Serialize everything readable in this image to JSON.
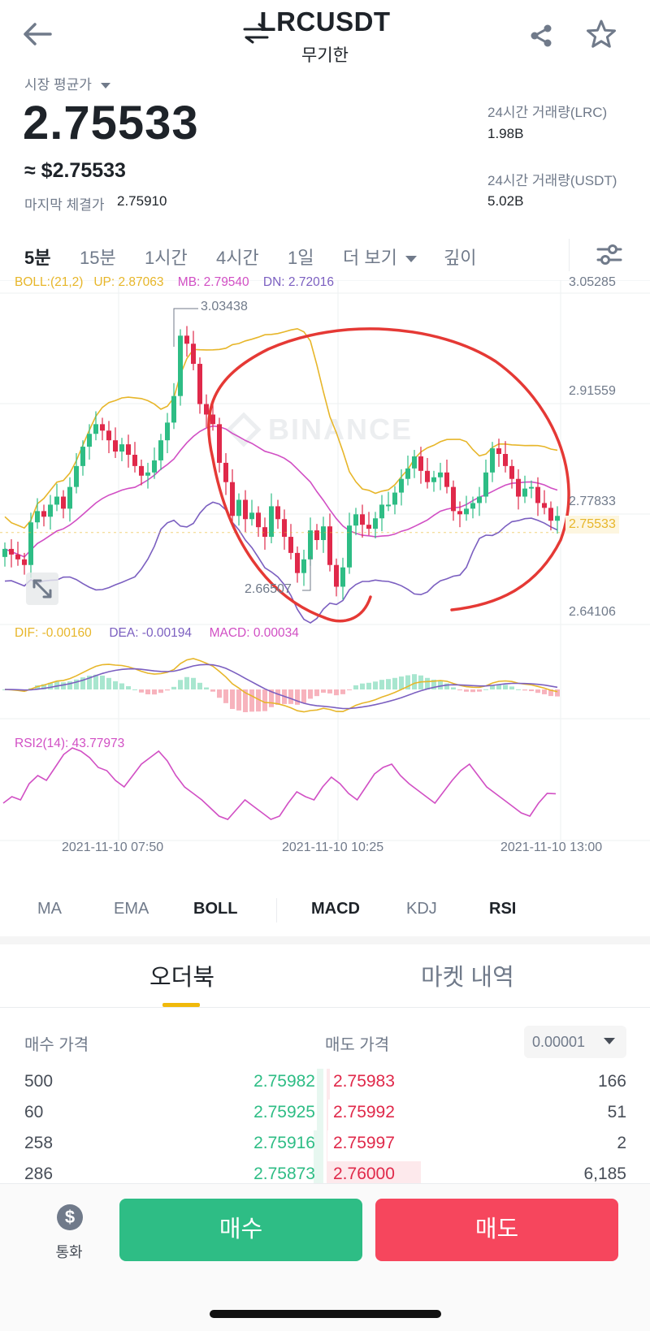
{
  "header": {
    "symbol": "LRCUSDT",
    "contract_type": "무기한",
    "icons": [
      "back-arrow-icon",
      "swap-icon",
      "share-icon",
      "star-icon"
    ]
  },
  "ticker": {
    "price_source_label": "시장 평균가",
    "price": "2.75533",
    "usd_price": "≈ $2.75533",
    "last_trade_label": "마지막 체결가",
    "last_trade_price": "2.75910",
    "vol_base_label": "24시간 거래량(LRC)",
    "vol_base": "1.98B",
    "vol_quote_label": "24시간 거래량(USDT)",
    "vol_quote": "5.02B"
  },
  "intervals": {
    "items": [
      "5분",
      "15분",
      "1시간",
      "4시간",
      "1일",
      "더 보기",
      "깊이"
    ],
    "active": "5분"
  },
  "chart": {
    "watermark": "BINANCE",
    "boll_legend": {
      "params": "BOLL:(21,2)",
      "up": "UP: 2.87063",
      "mb": "MB: 2.79540",
      "dn": "DN: 2.72016"
    },
    "macd_legend": {
      "dif": "DIF: -0.00160",
      "dea": "DEA: -0.00194",
      "macd": "MACD: 0.00034"
    },
    "rsi_legend": "RSI2(14): 43.77973",
    "price_axis": [
      "3.05285",
      "2.91559",
      "2.77833",
      "2.64106"
    ],
    "current_price_tag": "2.75533",
    "high_marker": "3.03438",
    "low_marker": "2.66507",
    "time_axis": [
      "2021-11-10 07:50",
      "2021-11-10 10:25",
      "2021-11-10 13:00"
    ],
    "colors": {
      "up": "#2ebd85",
      "down": "#e0294a",
      "boll_up": "#e7b62a",
      "boll_mb": "#d14fc4",
      "boll_dn": "#7b5fc0",
      "annotation": "#e53935"
    }
  },
  "chart_data": {
    "type": "candlestick",
    "y_range": [
      2.64106,
      3.05285
    ],
    "high": 3.03438,
    "low": 2.66507,
    "closes": [
      2.735,
      2.728,
      2.722,
      2.715,
      2.768,
      2.782,
      2.775,
      2.79,
      2.8,
      2.785,
      2.812,
      2.838,
      2.862,
      2.878,
      2.89,
      2.882,
      2.87,
      2.856,
      2.865,
      2.852,
      2.838,
      2.826,
      2.83,
      2.845,
      2.87,
      2.892,
      2.925,
      3.0,
      2.99,
      2.965,
      2.915,
      2.902,
      2.89,
      2.842,
      2.818,
      2.776,
      2.796,
      2.772,
      2.78,
      2.762,
      2.75,
      2.788,
      2.772,
      2.75,
      2.73,
      2.705,
      2.722,
      2.758,
      2.746,
      2.763,
      2.715,
      2.688,
      2.712,
      2.764,
      2.778,
      2.765,
      2.76,
      2.773,
      2.79,
      2.79,
      2.805,
      2.822,
      2.835,
      2.85,
      2.832,
      2.818,
      2.824,
      2.83,
      2.812,
      2.782,
      2.778,
      2.785,
      2.792,
      2.8,
      2.83,
      2.86,
      2.853,
      2.838,
      2.822,
      2.8,
      2.81,
      2.812,
      2.792,
      2.786,
      2.77,
      2.776
    ],
    "boll_up": 2.87063,
    "boll_mb": 2.7954,
    "boll_dn": 2.72016,
    "macd": {
      "dif": -0.0016,
      "dea": -0.00194,
      "macd": 0.00034
    },
    "rsi": [
      38,
      42,
      40,
      50,
      55,
      52,
      60,
      68,
      72,
      70,
      66,
      60,
      58,
      52,
      48,
      55,
      62,
      66,
      70,
      64,
      55,
      48,
      44,
      40,
      35,
      30,
      28,
      34,
      40,
      36,
      32,
      28,
      30,
      38,
      45,
      42,
      40,
      48,
      54,
      50,
      44,
      40,
      48,
      56,
      60,
      62,
      55,
      50,
      46,
      42,
      38,
      45,
      52,
      58,
      62,
      55,
      48,
      44,
      40,
      36,
      32,
      30,
      38,
      44,
      43.78
    ]
  },
  "indicator_tabs": {
    "main": [
      "MA",
      "EMA",
      "BOLL"
    ],
    "sub": [
      "MACD",
      "KDJ",
      "RSI"
    ]
  },
  "orderbook": {
    "tabs": [
      "오더북",
      "마켓 내역"
    ],
    "bid_header": "매수 가격",
    "ask_header": "매도 가격",
    "precision": "0.00001",
    "rows": [
      {
        "bid_qty": "500",
        "bid_price": "2.75982",
        "ask_price": "2.75983",
        "ask_qty": "166",
        "bid_depth": 0.02,
        "ask_depth": 0.01
      },
      {
        "bid_qty": "60",
        "bid_price": "2.75925",
        "ask_price": "2.75992",
        "ask_qty": "51",
        "bid_depth": 0.02,
        "ask_depth": 0.005
      },
      {
        "bid_qty": "258",
        "bid_price": "2.75916",
        "ask_price": "2.75997",
        "ask_qty": "2",
        "bid_depth": 0.03,
        "ask_depth": 0.002
      },
      {
        "bid_qty": "286",
        "bid_price": "2.75873",
        "ask_price": "2.76000",
        "ask_qty": "6,185",
        "bid_depth": 0.03,
        "ask_depth": 0.3
      }
    ]
  },
  "bottom_bar": {
    "currency_label": "통화",
    "buy_label": "매수",
    "sell_label": "매도"
  }
}
